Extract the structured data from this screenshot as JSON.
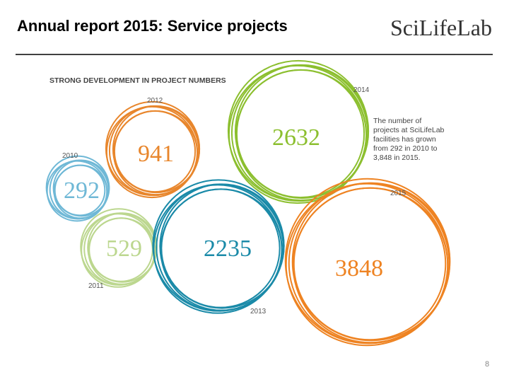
{
  "header": {
    "title": "Annual report 2015: Service projects",
    "logo": "SciLifeLab"
  },
  "infographic": {
    "title": "STRONG DEVELOPMENT IN PROJECT NUMBERS",
    "bubbles": [
      {
        "year": "2010",
        "value": 292,
        "color": "#6fb8d6"
      },
      {
        "year": "2011",
        "value": 529,
        "color": "#bcd78f"
      },
      {
        "year": "2012",
        "value": 941,
        "color": "#e8862c"
      },
      {
        "year": "2013",
        "value": 2235,
        "color": "#1a8aa8"
      },
      {
        "year": "2014",
        "value": 2632,
        "color": "#8cbf2f"
      },
      {
        "year": "2015",
        "value": 3848,
        "color": "#ee8322"
      }
    ],
    "note": [
      "The number of",
      "projects at SciLifeLab",
      "facilities has grown",
      "from 292 in 2010 to",
      "3,848 in 2015."
    ]
  },
  "footer": {
    "page": "8"
  }
}
